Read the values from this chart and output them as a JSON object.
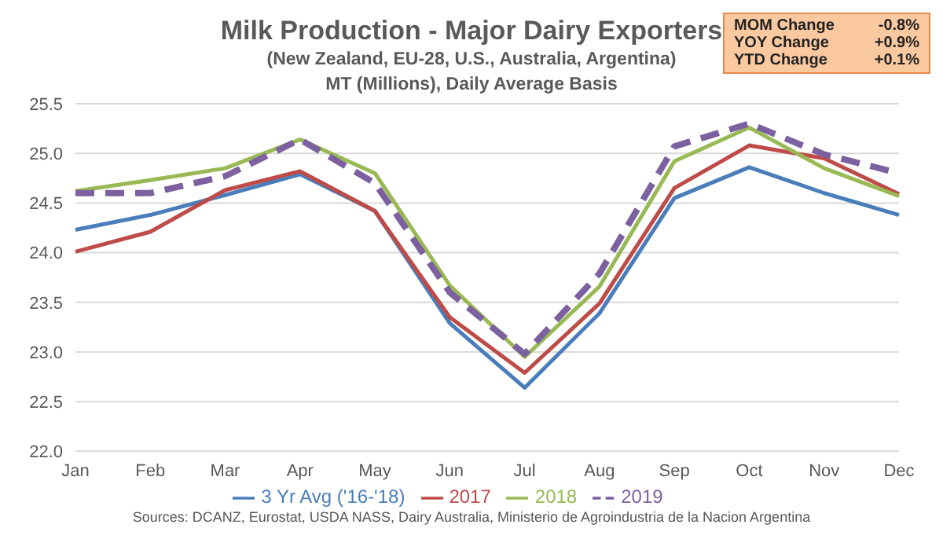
{
  "chart_data": {
    "type": "line",
    "title": "Milk Production - Major Dairy Exporters",
    "subtitle": "(New Zealand, EU-28, U.S., Australia,  Argentina)\nMT (Millions), Daily Average Basis",
    "categories": [
      "Jan",
      "Feb",
      "Mar",
      "Apr",
      "May",
      "Jun",
      "Jul",
      "Aug",
      "Sep",
      "Oct",
      "Nov",
      "Dec"
    ],
    "series": [
      {
        "name": "3 Yr Avg ('16-'18)",
        "color": "#4a7ebb",
        "values": [
          24.23,
          24.38,
          24.58,
          24.79,
          24.42,
          23.29,
          22.64,
          23.39,
          24.55,
          24.86,
          24.6,
          24.38
        ]
      },
      {
        "name": "2017",
        "color": "#be4b48",
        "values": [
          24.01,
          24.21,
          24.63,
          24.82,
          24.42,
          23.35,
          22.79,
          23.49,
          24.65,
          25.08,
          24.95,
          24.59
        ]
      },
      {
        "name": "2018",
        "color": "#98b954",
        "values": [
          24.62,
          24.73,
          24.85,
          25.14,
          24.8,
          23.67,
          22.95,
          23.66,
          24.92,
          25.26,
          24.85,
          24.57
        ]
      },
      {
        "name": "2019",
        "color": "#7d60a0",
        "line_style": "dashed",
        "values": [
          24.6,
          24.6,
          24.77,
          25.14,
          24.7,
          23.6,
          22.98,
          23.79,
          25.07,
          25.3,
          24.99,
          24.8
        ]
      }
    ],
    "ylim": [
      22,
      25.5
    ],
    "yticks": [
      {
        "value": 22,
        "label": "22.0"
      },
      {
        "value": 22.5,
        "label": "22.5"
      },
      {
        "value": 23,
        "label": "23.0"
      },
      {
        "value": 23.5,
        "label": "23.5"
      },
      {
        "value": 24,
        "label": "24.0"
      },
      {
        "value": 24.5,
        "label": "24.5"
      },
      {
        "value": 25,
        "label": "25.0"
      },
      {
        "value": 25.5,
        "label": "25.5"
      }
    ],
    "grid": "y",
    "legend": "bottom",
    "marker": "none",
    "annotations": [
      "MOM Change\t-0.8%",
      "YOY Change\t+0.9%",
      "YTD Change\t+0.1%",
      "Sources: DCANZ, Eurostat, USDA NASS, Dairy Australia, Ministerio de Agroindustria de la Nacion Argentina"
    ]
  }
}
